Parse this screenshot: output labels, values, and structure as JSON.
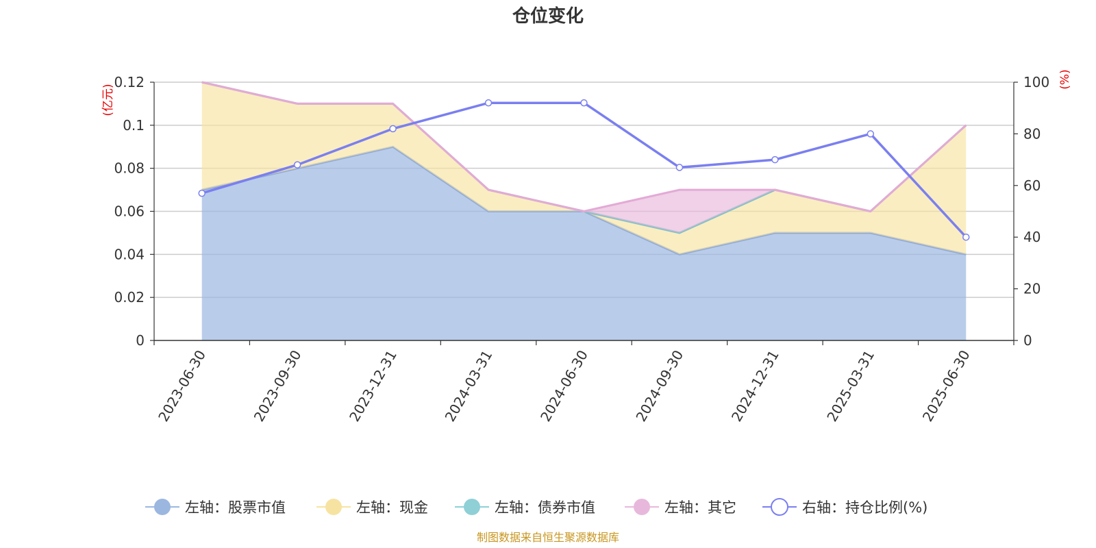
{
  "chart_data": {
    "type": "area",
    "title": "仓位变化",
    "x": [
      "2023-06-30",
      "2023-09-30",
      "2023-12-31",
      "2024-03-31",
      "2024-06-30",
      "2024-09-30",
      "2024-12-31",
      "2025-03-31",
      "2025-06-30"
    ],
    "left_axis": {
      "unit_label": "(亿元)",
      "ylim": [
        0,
        0.12
      ],
      "ticks": [
        "0",
        "0.02",
        "0.04",
        "0.06",
        "0.08",
        "0.1",
        "0.12"
      ]
    },
    "right_axis": {
      "unit_label": "(%)",
      "ylim": [
        0,
        100
      ],
      "ticks": [
        "0",
        "20",
        "40",
        "60",
        "80",
        "100"
      ]
    },
    "series": [
      {
        "name": "左轴：股票市值",
        "type": "stacked-area",
        "axis": "left",
        "color": "#9bb7e0",
        "values": [
          0.07,
          0.08,
          0.09,
          0.06,
          0.06,
          0.04,
          0.05,
          0.05,
          0.04
        ]
      },
      {
        "name": "左轴：现金",
        "type": "stacked-area",
        "axis": "left",
        "color": "#f7e3a1",
        "values": [
          0.05,
          0.03,
          0.02,
          0.01,
          0.0,
          0.01,
          0.02,
          0.01,
          0.06
        ]
      },
      {
        "name": "左轴：债券市值",
        "type": "stacked-area",
        "axis": "left",
        "color": "#8ed0d6",
        "values": [
          0,
          0,
          0,
          0,
          0,
          0,
          0,
          0,
          0
        ]
      },
      {
        "name": "左轴：其它",
        "type": "stacked-area",
        "axis": "left",
        "color": "#e8b8dc",
        "values": [
          0,
          0,
          0,
          0,
          0,
          0.02,
          0,
          0,
          0
        ]
      },
      {
        "name": "右轴：持仓比例(%)",
        "type": "line",
        "axis": "right",
        "color": "#7a7ff0",
        "values": [
          57,
          68,
          82,
          92,
          92,
          67,
          70,
          80,
          40
        ]
      }
    ],
    "grid": true,
    "legend_position": "bottom"
  },
  "source_text": "制图数据来自恒生聚源数据库"
}
